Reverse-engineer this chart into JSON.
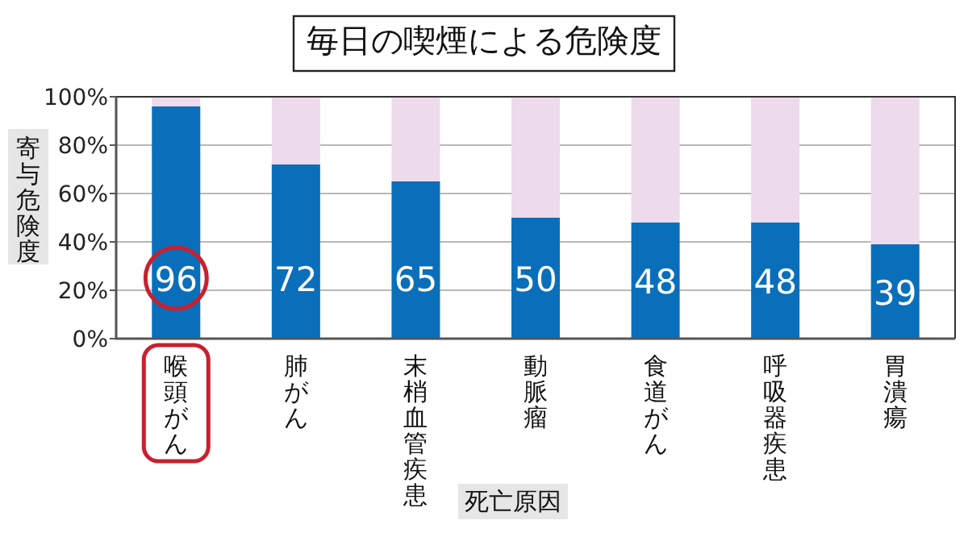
{
  "chart_data": {
    "type": "bar",
    "title": "毎日の喫煙による危険度",
    "xlabel": "死亡原因",
    "ylabel": "寄与危険度",
    "categories": [
      "喉頭がん",
      "肺がん",
      "末梢血管疾患",
      "動脈瘤",
      "食道がん",
      "呼吸器疾患",
      "胃潰瘍"
    ],
    "stacked": true,
    "series": [
      {
        "color": "#0a6fba",
        "values": [
          96,
          72,
          65,
          50,
          48,
          48,
          39
        ],
        "value_labels": [
          "96",
          "72",
          "65",
          "50",
          "48",
          "48",
          "39"
        ]
      },
      {
        "color": "#eddaeb",
        "values": [
          4,
          28,
          35,
          50,
          52,
          52,
          61
        ]
      }
    ],
    "ylim": [
      0,
      100
    ],
    "yticks": [
      {
        "value": 0,
        "label": "0%"
      },
      {
        "value": 20,
        "label": "20%"
      },
      {
        "value": 40,
        "label": "40%"
      },
      {
        "value": 60,
        "label": "60%"
      },
      {
        "value": 80,
        "label": "80%"
      },
      {
        "value": 100,
        "label": "100%"
      }
    ],
    "grid": "y"
  }
}
